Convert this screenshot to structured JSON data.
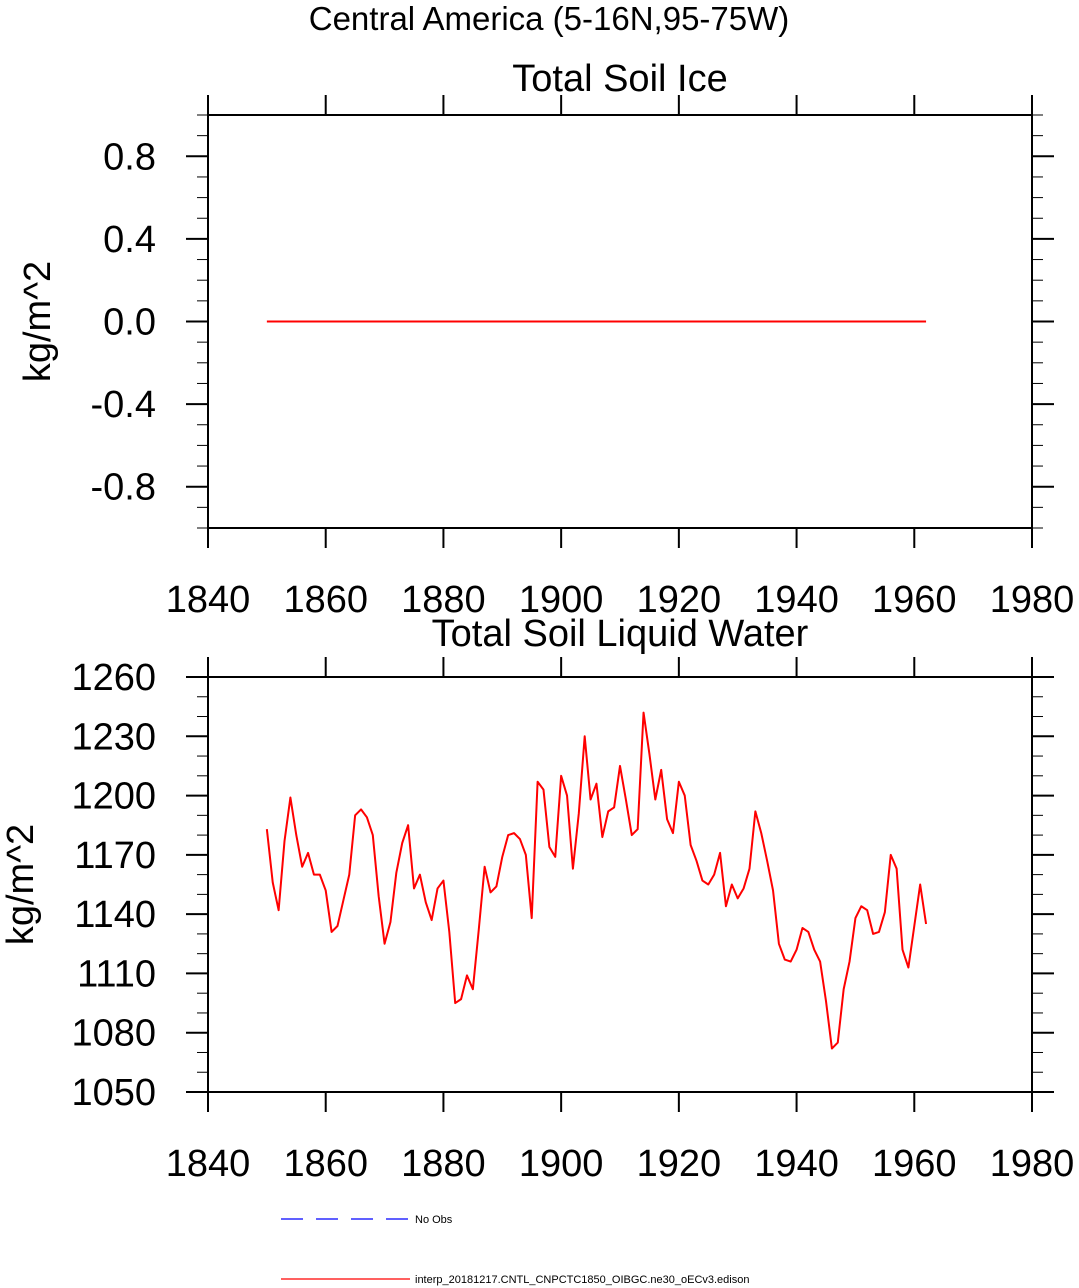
{
  "page": {
    "title": "Central America (5-16N,95-75W)"
  },
  "chart_data": [
    {
      "type": "line",
      "title": "Total Soil Ice",
      "xlabel": "",
      "ylabel": "kg/m^2",
      "xlim": [
        1840,
        1980
      ],
      "ylim": [
        -1.0,
        1.0
      ],
      "x_ticks": [
        1840,
        1860,
        1880,
        1900,
        1920,
        1940,
        1960,
        1980
      ],
      "y_ticks": [
        -0.8,
        -0.4,
        0.0,
        0.4,
        0.8
      ],
      "y_tick_labels": [
        "-0.8",
        "-0.4",
        "0.0",
        "0.4",
        "0.8"
      ],
      "grid": false,
      "series": [
        {
          "color": "#ff0000",
          "x_start": 1850,
          "x_step": 1,
          "values": [
            0,
            0,
            0,
            0,
            0,
            0,
            0,
            0,
            0,
            0,
            0,
            0,
            0,
            0,
            0,
            0,
            0,
            0,
            0,
            0,
            0,
            0,
            0,
            0,
            0,
            0,
            0,
            0,
            0,
            0,
            0,
            0,
            0,
            0,
            0,
            0,
            0,
            0,
            0,
            0,
            0,
            0,
            0,
            0,
            0,
            0,
            0,
            0,
            0,
            0,
            0,
            0,
            0,
            0,
            0,
            0,
            0,
            0,
            0,
            0,
            0,
            0,
            0,
            0,
            0,
            0,
            0,
            0,
            0,
            0,
            0,
            0,
            0,
            0,
            0,
            0,
            0,
            0,
            0,
            0,
            0,
            0,
            0,
            0,
            0,
            0,
            0,
            0,
            0,
            0,
            0,
            0,
            0,
            0,
            0,
            0,
            0,
            0,
            0,
            0,
            0,
            0,
            0,
            0,
            0,
            0,
            0,
            0,
            0,
            0,
            0,
            0,
            0
          ]
        }
      ]
    },
    {
      "type": "line",
      "title": "Total Soil Liquid Water",
      "xlabel": "",
      "ylabel": "kg/m^2",
      "xlim": [
        1840,
        1980
      ],
      "ylim": [
        1050,
        1260
      ],
      "x_ticks": [
        1840,
        1860,
        1880,
        1900,
        1920,
        1940,
        1960,
        1980
      ],
      "y_ticks": [
        1050,
        1080,
        1110,
        1140,
        1170,
        1200,
        1230,
        1260
      ],
      "y_tick_labels": [
        "1050",
        "1080",
        "1110",
        "1140",
        "1170",
        "1200",
        "1230",
        "1260"
      ],
      "grid": false,
      "series": [
        {
          "color": "#ff0000",
          "x_start": 1850,
          "x_step": 1,
          "values": [
            1183,
            1156,
            1142,
            1177,
            1199,
            1180,
            1164,
            1171,
            1160,
            1160,
            1152,
            1131,
            1134,
            1147,
            1160,
            1190,
            1193,
            1189,
            1180,
            1149,
            1125,
            1136,
            1161,
            1176,
            1185,
            1153,
            1160,
            1146,
            1137,
            1153,
            1157,
            1131,
            1095,
            1097,
            1109,
            1102,
            1132,
            1164,
            1151,
            1154,
            1169,
            1180,
            1181,
            1178,
            1170,
            1138,
            1207,
            1203,
            1174,
            1169,
            1210,
            1200,
            1163,
            1191,
            1230,
            1198,
            1206,
            1179,
            1192,
            1194,
            1215,
            1198,
            1180,
            1183,
            1242,
            1221,
            1198,
            1213,
            1188,
            1181,
            1207,
            1200,
            1175,
            1167,
            1157,
            1155,
            1160,
            1171,
            1144,
            1155,
            1148,
            1153,
            1163,
            1192,
            1181,
            1167,
            1152,
            1125,
            1117,
            1116,
            1122,
            1133,
            1131,
            1122,
            1116,
            1096,
            1072,
            1075,
            1102,
            1116,
            1138,
            1144,
            1142,
            1130,
            1131,
            1141,
            1170,
            1163,
            1122,
            1113,
            1134,
            1155,
            1135
          ]
        }
      ]
    }
  ],
  "legend": {
    "entries": [
      {
        "label": "No Obs",
        "color": "#0000ff",
        "style": "dashed"
      },
      {
        "label": "interp_20181217.CNTL_CNPCTC1850_OIBGC.ne30_oECv3.edison",
        "color": "#ff0000",
        "style": "solid"
      }
    ]
  }
}
